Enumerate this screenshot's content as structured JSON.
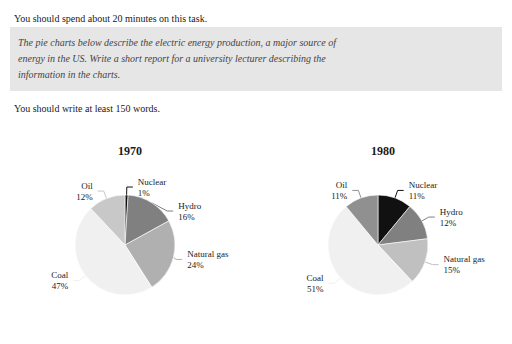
{
  "chart_data": [
    {
      "type": "pie",
      "title": "1970",
      "annotations": [
        "You should spend about 20 minutes on this task.",
        "The pie charts below describe the electric energy production, a major source of\nenergy in the US. Write a short report for a university lecturer describing the\ninformation in the charts.",
        "You should write at least 150 words."
      ],
      "categories": [
        "Nuclear",
        "Hydro",
        "Natural gas",
        "Coal",
        "Oil"
      ],
      "values": [
        1,
        16,
        24,
        47,
        12
      ],
      "value_labels": [
        "1%",
        "16%",
        "24%",
        "47%",
        "12%"
      ],
      "colors": [
        "#111111",
        "#808080",
        "#b0b0b0",
        "#f0f0f0",
        "#c8c8c8"
      ],
      "data_labels": true
    },
    {
      "type": "pie",
      "title": "1980",
      "categories": [
        "Nuclear",
        "Hydro",
        "Natural gas",
        "Coal",
        "Oil"
      ],
      "values": [
        11,
        12,
        15,
        51,
        11
      ],
      "value_labels": [
        "11%",
        "12%",
        "15%",
        "51%",
        "11%"
      ],
      "colors": [
        "#111111",
        "#808080",
        "#c0c0c0",
        "#f0f0f0",
        "#909090"
      ],
      "data_labels": true
    }
  ]
}
